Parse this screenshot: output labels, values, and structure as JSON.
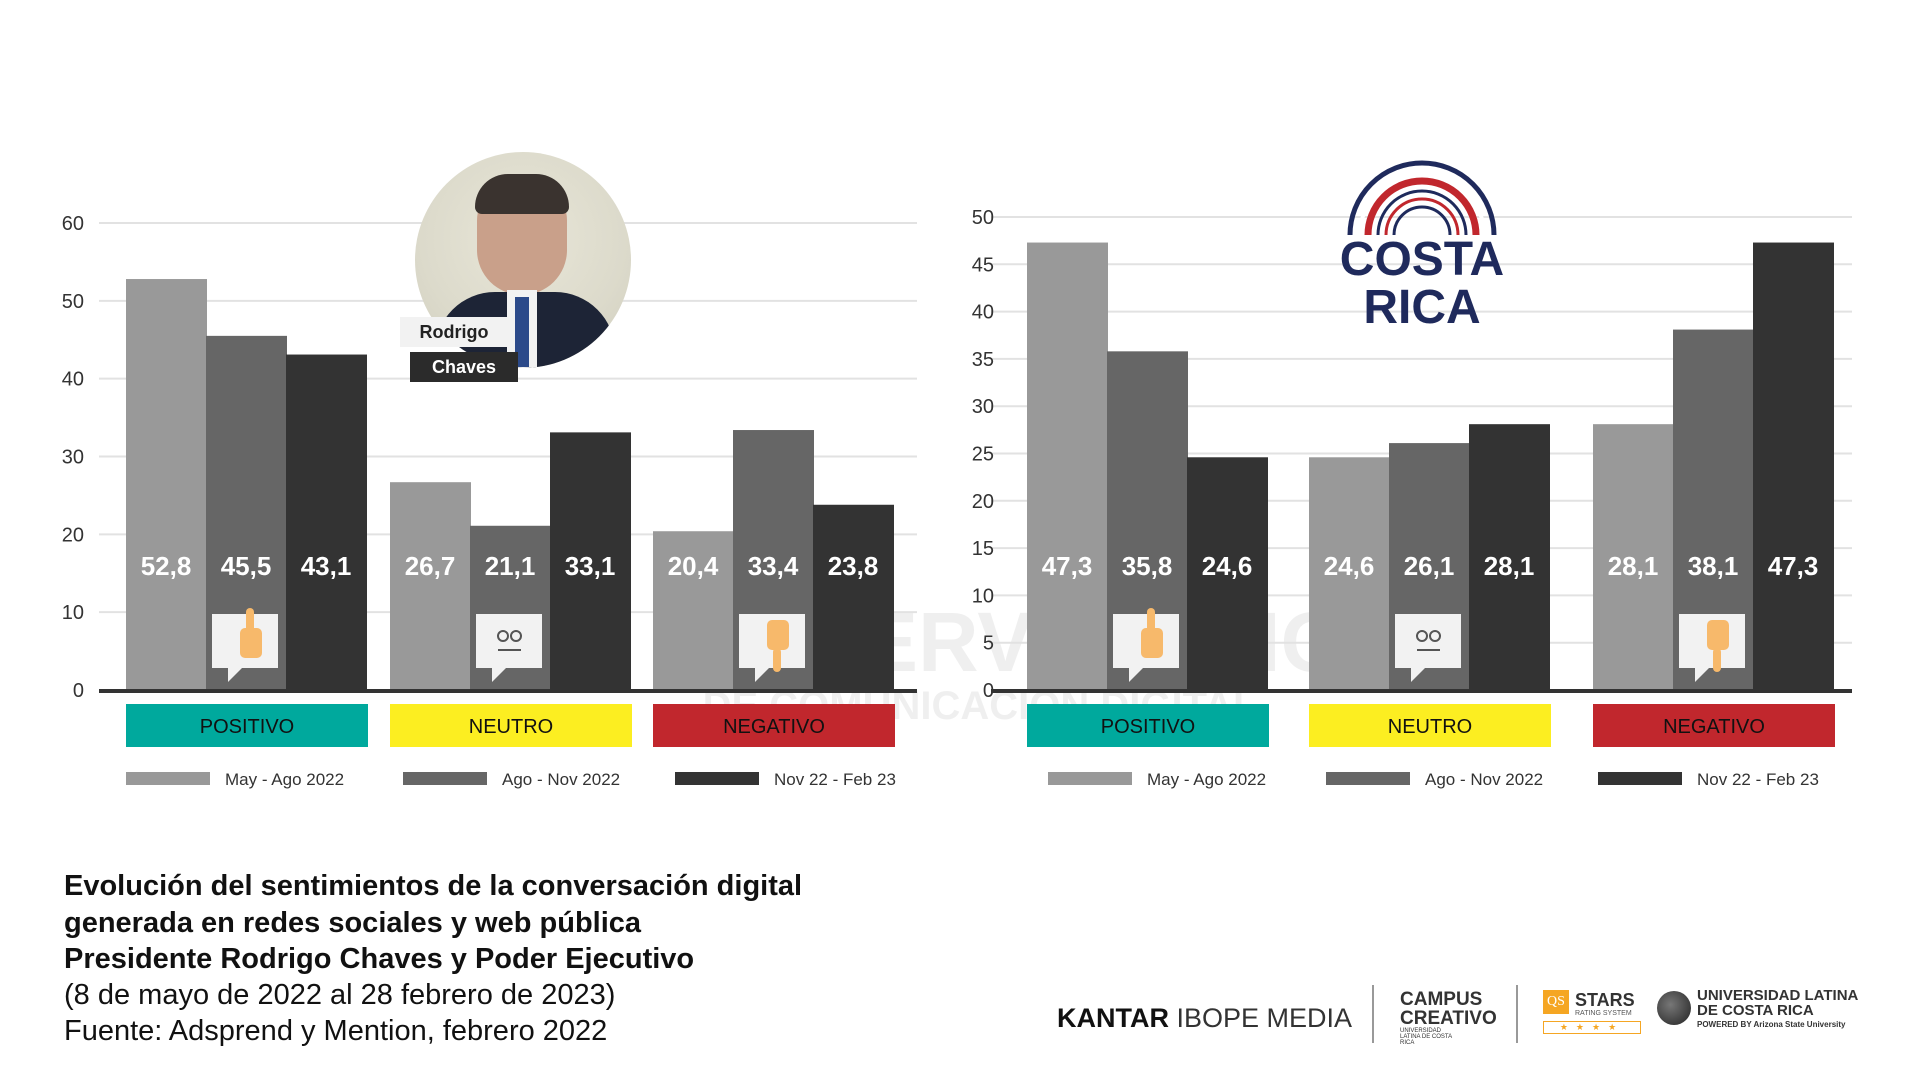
{
  "chart_data": [
    {
      "type": "bar",
      "subject": "Rodrigo Chaves",
      "categories": [
        "POSITIVO",
        "NEUTRO",
        "NEGATIVO"
      ],
      "category_colors": [
        "#00a99d",
        "#fcee21",
        "#c1272d"
      ],
      "series": [
        {
          "name": "May - Ago 2022",
          "color": "#999999",
          "values": [
            52.8,
            26.7,
            20.4
          ]
        },
        {
          "name": "Ago - Nov 2022",
          "color": "#666666",
          "values": [
            45.5,
            21.1,
            33.4
          ]
        },
        {
          "name": "Nov 22 - Feb 23",
          "color": "#333333",
          "values": [
            43.1,
            33.1,
            23.8
          ]
        }
      ],
      "data_labels": [
        [
          "52,8",
          "26,7",
          "20,4"
        ],
        [
          "45,5",
          "21,1",
          "33,4"
        ],
        [
          "43,1",
          "33,1",
          "23,8"
        ]
      ],
      "yticks": [
        "0",
        "10",
        "20",
        "30",
        "40",
        "50",
        "60"
      ],
      "ylim": [
        0,
        60
      ],
      "grid": true,
      "legend": "bottom"
    },
    {
      "type": "bar",
      "subject": "Costa Rica",
      "categories": [
        "POSITIVO",
        "NEUTRO",
        "NEGATIVO"
      ],
      "category_colors": [
        "#00a99d",
        "#fcee21",
        "#c1272d"
      ],
      "series": [
        {
          "name": "May - Ago 2022",
          "color": "#999999",
          "values": [
            47.3,
            24.6,
            28.1
          ]
        },
        {
          "name": "Ago - Nov 2022",
          "color": "#666666",
          "values": [
            35.8,
            26.1,
            38.1
          ]
        },
        {
          "name": "Nov 22 - Feb 23",
          "color": "#333333",
          "values": [
            24.6,
            28.1,
            47.3
          ]
        }
      ],
      "data_labels": [
        [
          "47,3",
          "24,6",
          "28,1"
        ],
        [
          "35,8",
          "26,1",
          "38,1"
        ],
        [
          "24,6",
          "28,1",
          "47,3"
        ]
      ],
      "yticks": [
        "0",
        "5",
        "10",
        "15",
        "20",
        "25",
        "30",
        "35",
        "40",
        "45",
        "50"
      ],
      "ylim": [
        0,
        50
      ],
      "grid": true,
      "legend": "bottom"
    }
  ],
  "photo_label": {
    "first": "Rodrigo",
    "last": "Chaves"
  },
  "costa_rica_logo": {
    "line1": "COSTA",
    "line2": "RICA"
  },
  "watermark": {
    "line1": "OBSERVATORIO",
    "line2": "DE COMUNICACIÓN DIGITAL"
  },
  "caption": {
    "line1": "Evolución del sentimientos de la conversación digital",
    "line2": "generada en redes sociales y web pública",
    "line3": "Presidente Rodrigo Chaves y Poder Ejecutivo",
    "line4": "(8 de mayo de 2022 al 28 febrero de 2023)",
    "line5": "Fuente: Adsprend y Mention, febrero 2022"
  },
  "logos": {
    "kantar": "KANTAR",
    "ibope": "IBOPE MEDIA",
    "campus1": "CAMPUS",
    "campus2": "CREATIVO",
    "campus_sub": "UNIVERSIDAD LATINA DE COSTA RICA",
    "qs": "QS",
    "stars": "STARS",
    "rating": "RATING SYSTEM",
    "ulatina1": "UNIVERSIDAD LATINA",
    "ulatina2": "DE COSTA RICA",
    "powered": "POWERED BY Arizona State University"
  },
  "icons": [
    "thumbs-up-icon",
    "neutral-face-icon",
    "thumbs-down-icon"
  ]
}
